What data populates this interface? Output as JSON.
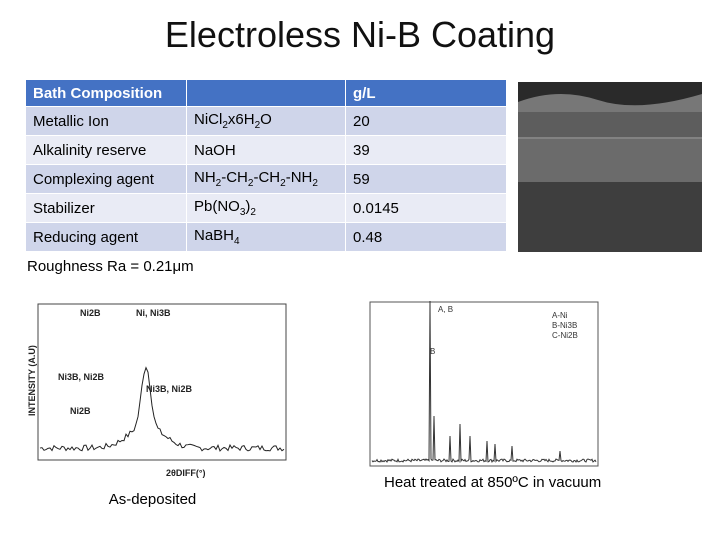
{
  "title": "Electroless Ni-B Coating",
  "table": {
    "header": [
      "Bath Composition",
      "g/L"
    ],
    "rows": [
      [
        "Metallic Ion",
        [
          "NiCl",
          "2",
          "x6H",
          "2",
          "O"
        ],
        "20"
      ],
      [
        "Alkalinity reserve",
        [
          "NaOH"
        ],
        "39"
      ],
      [
        "Complexing agent",
        [
          "NH",
          "2",
          "-CH",
          "2",
          "-CH",
          "2",
          "-NH",
          "2"
        ],
        "59"
      ],
      [
        "Stabilizer",
        [
          "Pb(NO",
          "3",
          ")",
          "2"
        ],
        "0.0145"
      ],
      [
        "Reducing agent",
        [
          "NaBH",
          "4"
        ],
        "0.48"
      ]
    ]
  },
  "note": "Roughness Ra = 0.21μm",
  "figures": [
    {
      "labels": [
        "Ni2B",
        "Ni, Ni3B",
        "Ni3B, Ni2B",
        "Ni3B, Ni2B",
        "Ni2B",
        "INTENSITY (A.U)",
        "2θDIFF(°)"
      ],
      "caption": "As-deposited"
    },
    {
      "labels": [
        "A-Ni",
        "B-Ni3B",
        "C-Ni2B",
        "A, B",
        "B"
      ],
      "caption": "Heat treated at 850ºC in vacuum"
    }
  ]
}
